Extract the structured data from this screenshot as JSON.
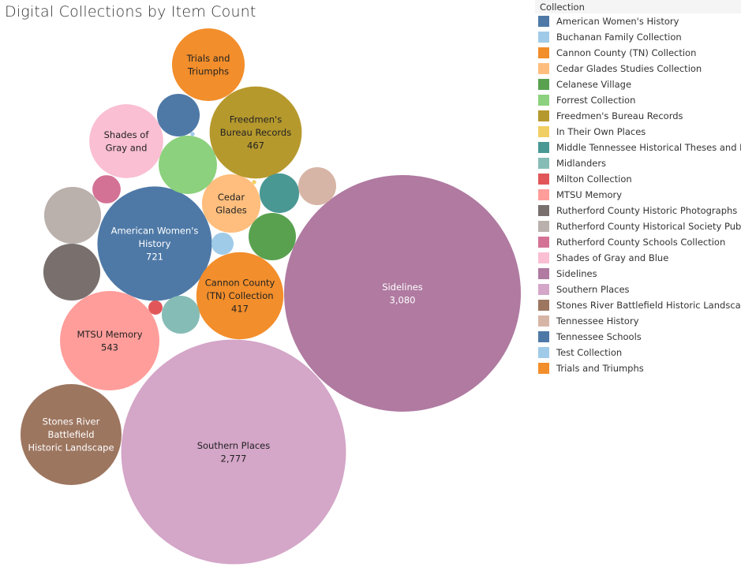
{
  "chart_data": {
    "type": "bubble",
    "title": "Digital Collections by Item Count",
    "legend": {
      "title": "Collection",
      "placement": "right"
    },
    "series": [
      {
        "name": "American Women's History",
        "value": 721,
        "color": "#4e79a7",
        "label": [
          "American Women's",
          "History",
          "721"
        ],
        "label_color": "#ffffff"
      },
      {
        "name": "Buchanan Family Collection",
        "value": 27,
        "color": "#a0cbe8",
        "label": []
      },
      {
        "name": "Cannon County (TN) Collection",
        "value": 417,
        "color": "#f28e2b",
        "label": [
          "Cannon County",
          "(TN) Collection",
          "417"
        ],
        "label_color": "#222222"
      },
      {
        "name": "Cedar Glades Studies Collection",
        "value": 188,
        "color": "#ffbe7d",
        "label": [
          "Cedar",
          "Glades"
        ],
        "label_color": "#222222"
      },
      {
        "name": "Celanese Village",
        "value": 123,
        "color": "#59a14f",
        "label": []
      },
      {
        "name": "Forrest Collection",
        "value": 187,
        "color": "#8cd17d",
        "label": []
      },
      {
        "name": "Freedmen's Bureau Records",
        "value": 467,
        "color": "#b6992d",
        "label": [
          "Freedmen's",
          "Bureau Records",
          "467"
        ],
        "label_color": "#222222"
      },
      {
        "name": "In Their Own Places",
        "value": 1,
        "color": "#f1ce63",
        "label": []
      },
      {
        "name": "Middle Tennessee Historical Theses and Di",
        "value": 86,
        "color": "#499894",
        "label": []
      },
      {
        "name": "Midlanders",
        "value": 79,
        "color": "#86bcb6",
        "label": []
      },
      {
        "name": "Milton Collection",
        "value": 11,
        "color": "#e15759",
        "label": []
      },
      {
        "name": "MTSU Memory",
        "value": 543,
        "color": "#ff9d9a",
        "label": [
          "MTSU Memory",
          "543"
        ],
        "label_color": "#222222"
      },
      {
        "name": "Rutherford County Historic Photographs",
        "value": 178,
        "color": "#79706e",
        "label": []
      },
      {
        "name": "Rutherford County Historical Society Publi",
        "value": 178,
        "color": "#bab0ac",
        "label": []
      },
      {
        "name": "Rutherford County Schools Collection",
        "value": 44,
        "color": "#d37295",
        "label": []
      },
      {
        "name": "Shades of Gray and Blue",
        "value": 300,
        "color": "#fabfd2",
        "label": [
          "Shades of",
          "Gray and"
        ],
        "label_color": "#222222"
      },
      {
        "name": "Sidelines",
        "value": 3080,
        "color": "#b07aa1",
        "label": [
          "Sidelines",
          "3,080"
        ],
        "label_color": "#ffffff"
      },
      {
        "name": "Southern Places",
        "value": 2777,
        "color": "#d4a6c8",
        "label": [
          "Southern Places",
          "2,777"
        ],
        "label_color": "#222222"
      },
      {
        "name": "Stones River Battlefield Historic Landscap",
        "value": 561,
        "color": "#9d7660",
        "label": [
          "Stones River",
          "Battlefield",
          "Historic Landscape"
        ],
        "label_color": "#ffffff"
      },
      {
        "name": "Tennessee History",
        "value": 79,
        "color": "#d7b5a6",
        "label": []
      },
      {
        "name": "Tennessee Schools",
        "value": 100,
        "color": "#4e79a7",
        "label": []
      },
      {
        "name": "Test Collection",
        "value": 1,
        "color": "#a0cbe8",
        "label": []
      },
      {
        "name": "Trials and Triumphs",
        "value": 290,
        "color": "#f28e2b",
        "label": [
          "Trials and",
          "Triumphs"
        ],
        "label_color": "#222222"
      }
    ]
  }
}
